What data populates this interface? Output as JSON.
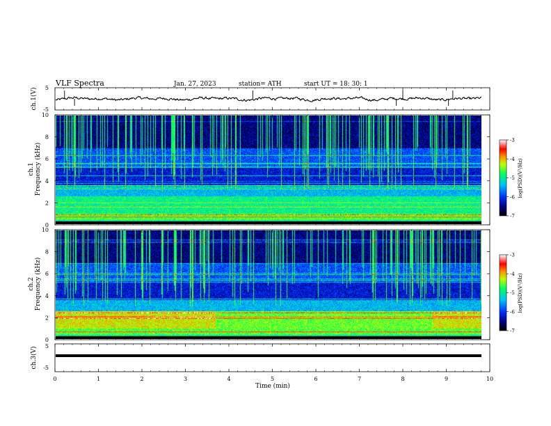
{
  "header": {
    "title": "VLF  Spectra",
    "date": "Jan. 27, 2023",
    "station": "station= ATH",
    "start": "start  UT  =    18: 30: 1"
  },
  "chart_data": [
    {
      "type": "line",
      "name": "ch1-waveform",
      "ylabel": "ch.1(V)",
      "ylim": [
        -5,
        5
      ],
      "yticks": [
        "5",
        "-5"
      ],
      "xlim": [
        0,
        10
      ],
      "description_values": "noisy waveform around 0 V with spikes near 0.2, 4.5, 7.9, 9.1 min",
      "spikes_min": [
        0.22,
        0.45,
        4.55,
        7.85,
        8.0,
        9.05,
        9.15
      ]
    },
    {
      "type": "heatmap",
      "name": "ch1-spectrogram",
      "ylabel": "ch.1\nFrequency (kHz)",
      "ylabel_line1": "ch.1",
      "ylabel_line2": "Frequency  (kHz)",
      "xlim": [
        0,
        9.85
      ],
      "ylim": [
        0,
        10
      ],
      "yticks": [
        "0",
        "2",
        "4",
        "6",
        "8",
        "10"
      ],
      "colorbar": {
        "label": "log(PSD)(V²/Hz)",
        "range": [
          -7,
          -3
        ],
        "ticks": [
          "-3",
          "-4",
          "-5",
          "-6",
          "-7"
        ]
      }
    },
    {
      "type": "heatmap",
      "name": "ch2-spectrogram",
      "ylabel_line1": "ch.2",
      "ylabel_line2": "Frequency  (kHz)",
      "xlim": [
        0,
        9.85
      ],
      "ylim": [
        0,
        10
      ],
      "yticks": [
        "0",
        "2",
        "4",
        "6",
        "8",
        "10"
      ],
      "colorbar": {
        "label": "log(PSD)(V²/Hz)",
        "range": [
          -7,
          -3
        ],
        "ticks": [
          "-3",
          "-4",
          "-5",
          "-6",
          "-7"
        ]
      }
    },
    {
      "type": "line",
      "name": "ch3-waveform",
      "ylabel": "ch.3(V)",
      "ylim": [
        -5,
        5
      ],
      "yticks": [
        "5",
        "-5"
      ],
      "xlim": [
        0,
        10
      ],
      "constant_value": 0,
      "xlabel": "Time  (min)",
      "xticks": [
        "0",
        "1",
        "2",
        "3",
        "4",
        "5",
        "6",
        "7",
        "8",
        "9",
        "10"
      ]
    }
  ]
}
